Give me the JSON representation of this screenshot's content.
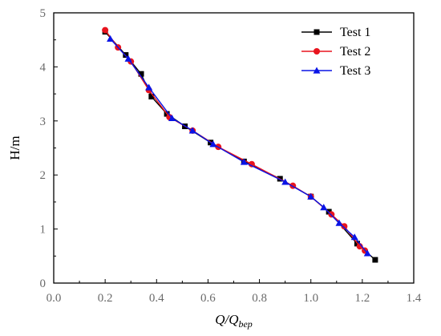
{
  "chart_data": {
    "type": "line",
    "title": "",
    "xlabel_main": "Q/Q",
    "xlabel_sub": "bep",
    "ylabel": "H/m",
    "xlim": [
      0.0,
      1.4
    ],
    "ylim": [
      0,
      5
    ],
    "xticks": [
      "0.0",
      "0.2",
      "0.4",
      "0.6",
      "0.8",
      "1.0",
      "1.2",
      "1.4"
    ],
    "yticks": [
      "0",
      "1",
      "2",
      "3",
      "4",
      "5"
    ],
    "grid": false,
    "legend_position": "top-right",
    "series": [
      {
        "name": "Test 1",
        "color": "#000000",
        "marker": "square",
        "x": [
          0.2,
          0.28,
          0.34,
          0.38,
          0.44,
          0.51,
          0.61,
          0.74,
          0.88,
          1.0,
          1.07,
          1.18,
          1.25
        ],
        "y": [
          4.65,
          4.22,
          3.87,
          3.45,
          3.13,
          2.9,
          2.6,
          2.25,
          1.93,
          1.6,
          1.32,
          0.73,
          0.43
        ]
      },
      {
        "name": "Test 2",
        "color": "#e8141e",
        "marker": "circle",
        "x": [
          0.2,
          0.25,
          0.3,
          0.37,
          0.45,
          0.54,
          0.64,
          0.77,
          0.93,
          1.0,
          1.08,
          1.13,
          1.19,
          1.21
        ],
        "y": [
          4.68,
          4.36,
          4.1,
          3.57,
          3.07,
          2.82,
          2.52,
          2.2,
          1.8,
          1.6,
          1.27,
          1.05,
          0.68,
          0.6
        ]
      },
      {
        "name": "Test 3",
        "color": "#0a14e6",
        "marker": "triangle",
        "x": [
          0.22,
          0.29,
          0.37,
          0.46,
          0.54,
          0.62,
          0.74,
          0.9,
          1.0,
          1.05,
          1.11,
          1.17,
          1.22
        ],
        "y": [
          4.52,
          4.15,
          3.62,
          3.05,
          2.82,
          2.57,
          2.24,
          1.87,
          1.6,
          1.4,
          1.11,
          0.85,
          0.55
        ]
      }
    ]
  }
}
